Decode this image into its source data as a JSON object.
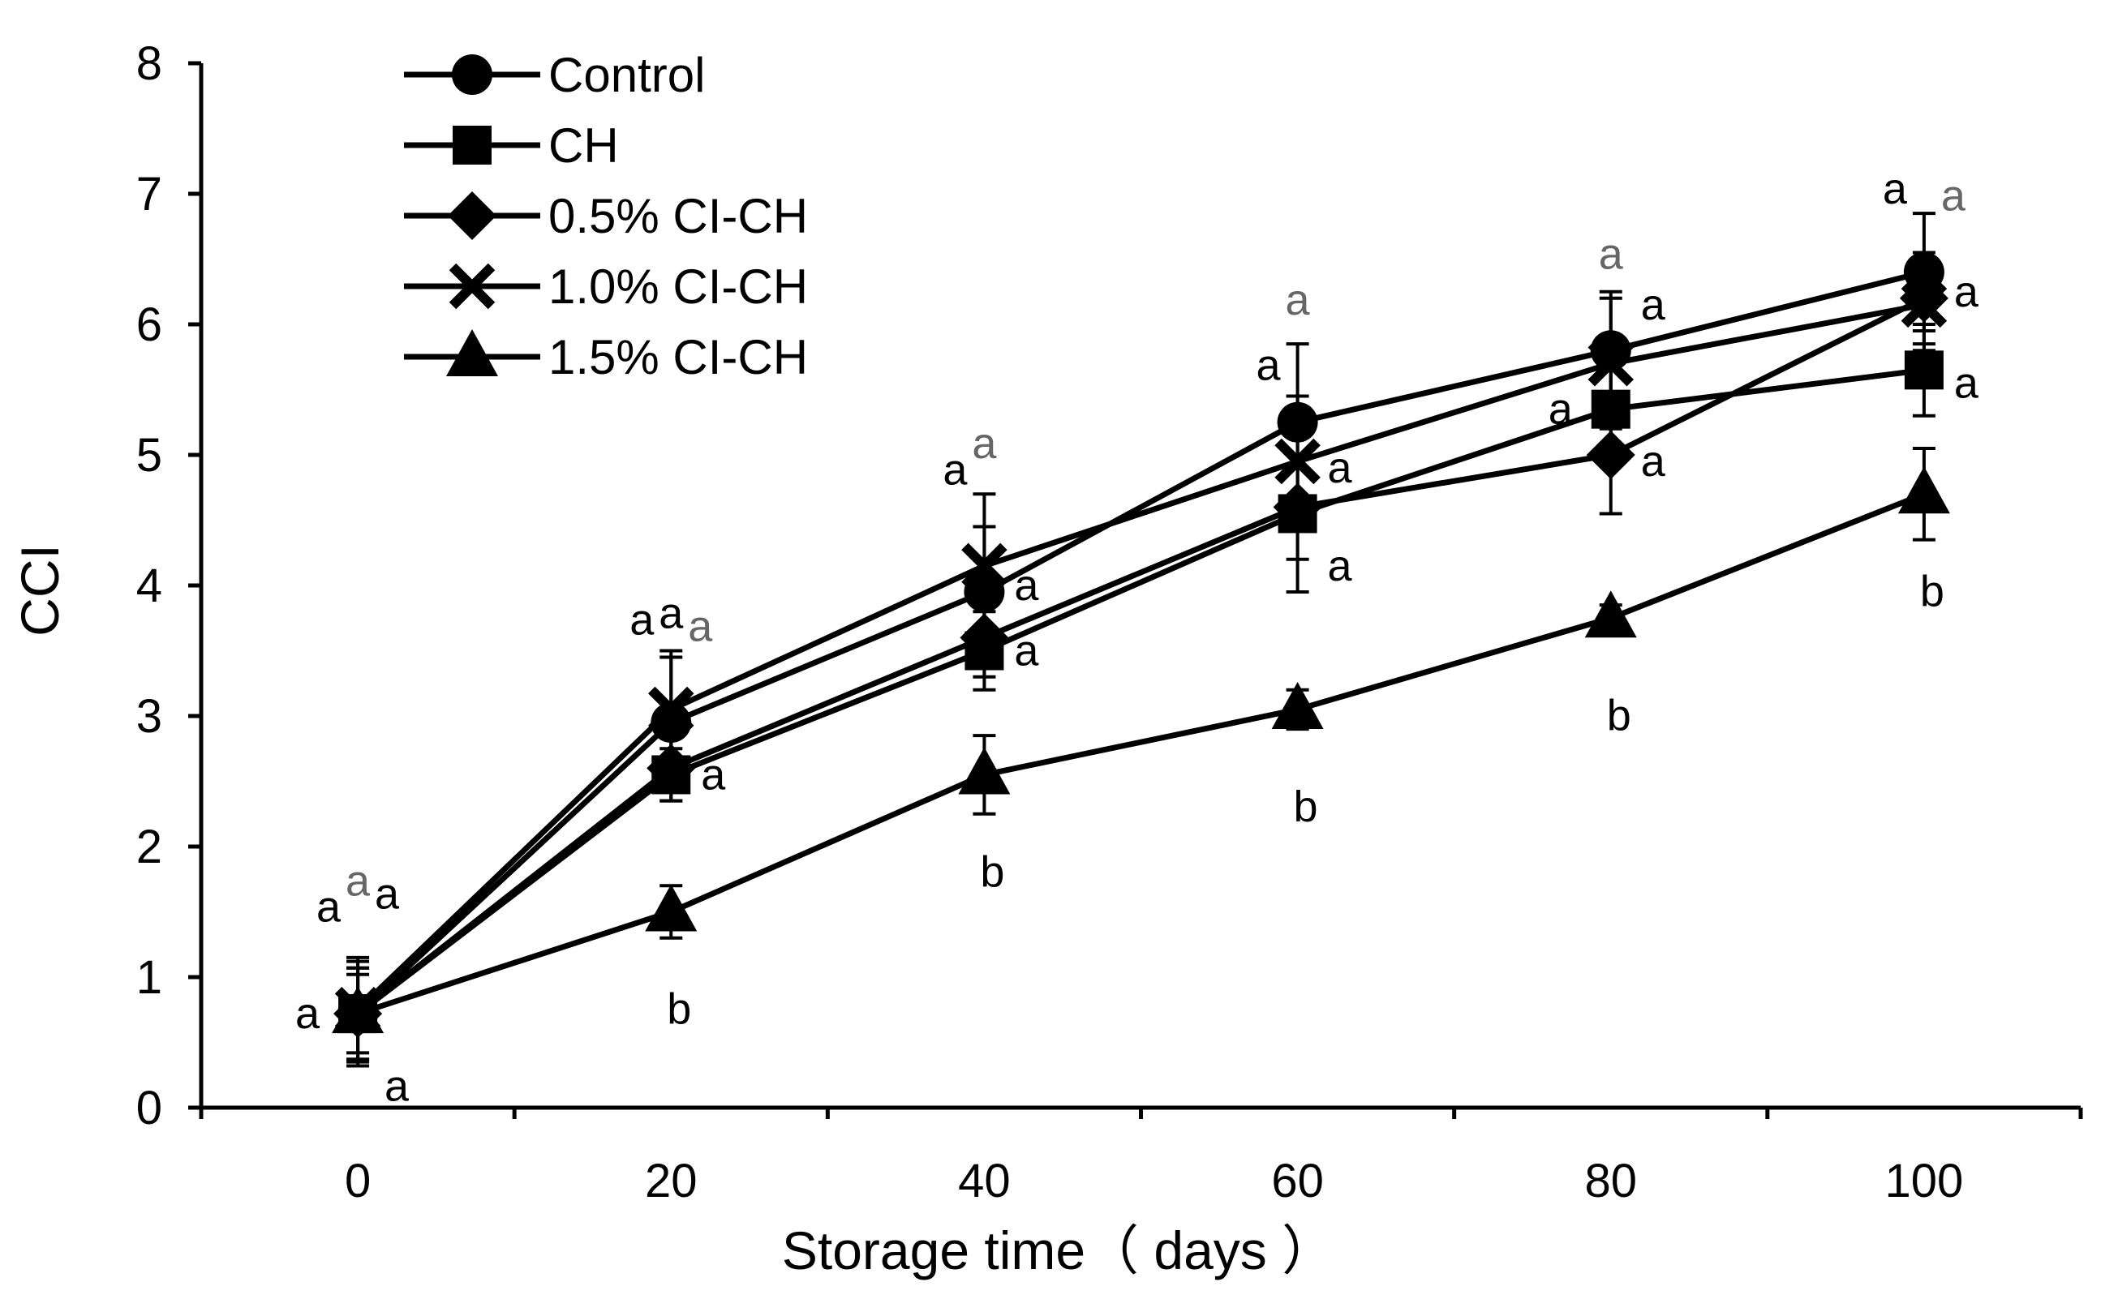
{
  "chart_data": {
    "type": "line",
    "xlabel": "Storage time（ days ）",
    "ylabel": "CCI",
    "x": [
      0,
      20,
      40,
      60,
      80,
      100
    ],
    "xlim": [
      -10,
      110
    ],
    "ylim": [
      0,
      8
    ],
    "xticks": [
      "0",
      "20",
      "40",
      "60",
      "80",
      "100"
    ],
    "yticks": [
      "0",
      "1",
      "2",
      "3",
      "4",
      "5",
      "6",
      "7",
      "8"
    ],
    "grid": false,
    "legend_position": "top-left",
    "series": [
      {
        "name": "Control",
        "marker": "circle",
        "values": [
          0.72,
          2.95,
          3.95,
          5.25,
          5.8,
          6.4
        ],
        "errors": [
          0.35,
          0.5,
          0.5,
          0.6,
          0.45,
          0.45
        ]
      },
      {
        "name": "CH",
        "marker": "square",
        "values": [
          0.72,
          2.55,
          3.5,
          4.55,
          5.35,
          5.65
        ],
        "errors": [
          0.35,
          0.2,
          0.3,
          0.6,
          0.3,
          0.35
        ]
      },
      {
        "name": "0.5% CI-CH",
        "marker": "diamond",
        "values": [
          0.72,
          2.6,
          3.6,
          4.6,
          5.0,
          6.2
        ],
        "errors": [
          0.4,
          0.25,
          0.3,
          0.4,
          0.45,
          0.35
        ]
      },
      {
        "name": "1.0% CI-CH",
        "marker": "x",
        "values": [
          0.75,
          3.05,
          4.15,
          4.95,
          5.7,
          6.15
        ],
        "errors": [
          0.4,
          0.45,
          0.55,
          0.5,
          0.5,
          0.35
        ]
      },
      {
        "name": "1.5% CI-CH",
        "marker": "triangle",
        "values": [
          0.72,
          1.5,
          2.55,
          3.05,
          3.75,
          4.7
        ],
        "errors": [
          0.3,
          0.2,
          0.3,
          0.15,
          0.1,
          0.35
        ]
      }
    ],
    "annotations": [
      {
        "x": 0,
        "y": 0.72,
        "text": "a",
        "pos": "left",
        "grey": false
      },
      {
        "x": 0,
        "y": 1.3,
        "text": "a",
        "pos": "up-left",
        "grey": false
      },
      {
        "x": 0,
        "y": 1.5,
        "text": "a",
        "pos": "up",
        "grey": true
      },
      {
        "x": 0,
        "y": 1.4,
        "text": "a",
        "pos": "up-right",
        "grey": false
      },
      {
        "x": 0,
        "y": 0.3,
        "text": "a",
        "pos": "down-right",
        "grey": false
      },
      {
        "x": 20,
        "y": 3.5,
        "text": "a",
        "pos": "up-left",
        "grey": false
      },
      {
        "x": 20,
        "y": 3.55,
        "text": "a",
        "pos": "up",
        "grey": false
      },
      {
        "x": 20,
        "y": 3.45,
        "text": "a",
        "pos": "up-right",
        "grey": true
      },
      {
        "x": 20,
        "y": 2.55,
        "text": "a",
        "pos": "right",
        "grey": false
      },
      {
        "x": 20,
        "y": 1.5,
        "text": "b",
        "pos": "below",
        "grey": false
      },
      {
        "x": 40,
        "y": 4.65,
        "text": "a",
        "pos": "up-left",
        "grey": false
      },
      {
        "x": 40,
        "y": 4.85,
        "text": "a",
        "pos": "up",
        "grey": true
      },
      {
        "x": 40,
        "y": 4.0,
        "text": "a",
        "pos": "right",
        "grey": false
      },
      {
        "x": 40,
        "y": 3.5,
        "text": "a",
        "pos": "right",
        "grey": false
      },
      {
        "x": 40,
        "y": 2.55,
        "text": "b",
        "pos": "below",
        "grey": false
      },
      {
        "x": 60,
        "y": 5.95,
        "text": "a",
        "pos": "up",
        "grey": true
      },
      {
        "x": 60,
        "y": 5.45,
        "text": "a",
        "pos": "up-left",
        "grey": false
      },
      {
        "x": 60,
        "y": 4.9,
        "text": "a",
        "pos": "right",
        "grey": false
      },
      {
        "x": 60,
        "y": 4.15,
        "text": "a",
        "pos": "right",
        "grey": false
      },
      {
        "x": 60,
        "y": 3.05,
        "text": "b",
        "pos": "below",
        "grey": false
      },
      {
        "x": 80,
        "y": 6.3,
        "text": "a",
        "pos": "up",
        "grey": true
      },
      {
        "x": 80,
        "y": 6.15,
        "text": "a",
        "pos": "right",
        "grey": false
      },
      {
        "x": 80,
        "y": 5.35,
        "text": "a",
        "pos": "left",
        "grey": false
      },
      {
        "x": 80,
        "y": 4.95,
        "text": "a",
        "pos": "right",
        "grey": false
      },
      {
        "x": 80,
        "y": 3.75,
        "text": "b",
        "pos": "below",
        "grey": false
      },
      {
        "x": 100,
        "y": 6.8,
        "text": "a",
        "pos": "up-left",
        "grey": false
      },
      {
        "x": 100,
        "y": 6.75,
        "text": "a",
        "pos": "up-right",
        "grey": true
      },
      {
        "x": 100,
        "y": 6.25,
        "text": "a",
        "pos": "right",
        "grey": false
      },
      {
        "x": 100,
        "y": 5.55,
        "text": "a",
        "pos": "right",
        "grey": false
      },
      {
        "x": 100,
        "y": 4.7,
        "text": "b",
        "pos": "below",
        "grey": false
      }
    ]
  }
}
